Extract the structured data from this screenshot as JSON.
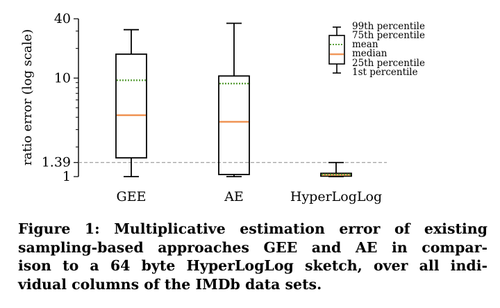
{
  "chart_data": {
    "type": "box",
    "ylabel": "ratio error (log scale)",
    "yscale": "log",
    "ylim": [
      1,
      40
    ],
    "yticks": [
      {
        "value": 1,
        "label": "1"
      },
      {
        "value": 1.39,
        "label": "1.39"
      },
      {
        "value": 10,
        "label": "10"
      },
      {
        "value": 40,
        "label": "40"
      }
    ],
    "reference_line": {
      "value": 1.39,
      "style": "dashed"
    },
    "categories": [
      "GEE",
      "AE",
      "HyperLogLog"
    ],
    "boxes": [
      {
        "name": "GEE",
        "p1": 1.0,
        "p25": 1.55,
        "median": 4.2,
        "mean": 9.5,
        "p75": 17.5,
        "p99": 31
      },
      {
        "name": "AE",
        "p1": 1.0,
        "p25": 1.05,
        "median": 3.6,
        "mean": 8.8,
        "p75": 10.5,
        "p99": 36
      },
      {
        "name": "HyperLogLog",
        "p1": 1.0,
        "p25": 1.01,
        "median": 1.04,
        "mean": 1.05,
        "p75": 1.08,
        "p99": 1.39
      }
    ],
    "legend": {
      "position": "top-right",
      "entries": [
        "99th percentile",
        "75th percentile",
        "mean",
        "median",
        "25th percentile",
        "1st percentile"
      ]
    },
    "colors": {
      "median": "#f0975a",
      "mean": "#5a9e3a",
      "box": "#000000",
      "reference": "#888888"
    }
  },
  "caption": {
    "lines": [
      "Figure 1: Multiplicative estimation error of existing",
      "sampling-based approaches GEE and AE in compar-",
      "ison to a 64 byte HyperLogLog sketch, over all indi-",
      "vidual columns of the IMDb data sets."
    ]
  }
}
